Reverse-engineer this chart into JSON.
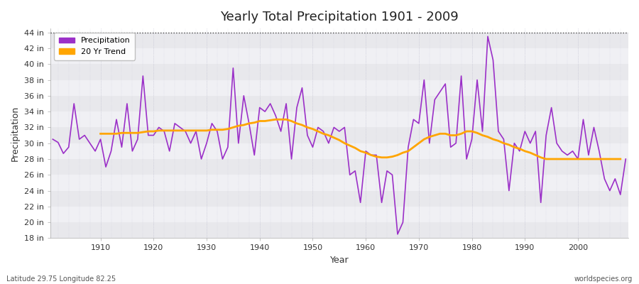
{
  "title": "Yearly Total Precipitation 1901 - 2009",
  "xlabel": "Year",
  "ylabel": "Precipitation",
  "fig_bg_color": "#ffffff",
  "plot_bg_color": "#ffffff",
  "precip_color": "#9B30C8",
  "trend_color": "#FFA500",
  "ylim": [
    18,
    44.5
  ],
  "yticks": [
    18,
    20,
    22,
    24,
    26,
    28,
    30,
    32,
    34,
    36,
    38,
    40,
    42,
    44
  ],
  "dotted_line_y": 44,
  "band_colors": [
    "#e8e8ec",
    "#f0f0f4"
  ],
  "years": [
    1901,
    1902,
    1903,
    1904,
    1905,
    1906,
    1907,
    1908,
    1909,
    1910,
    1911,
    1912,
    1913,
    1914,
    1915,
    1916,
    1917,
    1918,
    1919,
    1920,
    1921,
    1922,
    1923,
    1924,
    1925,
    1926,
    1927,
    1928,
    1929,
    1930,
    1931,
    1932,
    1933,
    1934,
    1935,
    1936,
    1937,
    1938,
    1939,
    1940,
    1941,
    1942,
    1943,
    1944,
    1945,
    1946,
    1947,
    1948,
    1949,
    1950,
    1951,
    1952,
    1953,
    1954,
    1955,
    1956,
    1957,
    1958,
    1959,
    1960,
    1961,
    1962,
    1963,
    1964,
    1965,
    1966,
    1967,
    1968,
    1969,
    1970,
    1971,
    1972,
    1973,
    1974,
    1975,
    1976,
    1977,
    1978,
    1979,
    1980,
    1981,
    1982,
    1983,
    1984,
    1985,
    1986,
    1987,
    1988,
    1989,
    1990,
    1991,
    1992,
    1993,
    1994,
    1995,
    1996,
    1997,
    1998,
    1999,
    2000,
    2001,
    2002,
    2003,
    2004,
    2005,
    2006,
    2007,
    2008,
    2009
  ],
  "precip": [
    30.5,
    30.1,
    28.7,
    29.5,
    35.0,
    30.5,
    31.0,
    30.0,
    29.0,
    30.5,
    27.0,
    29.0,
    33.0,
    29.5,
    35.0,
    29.0,
    30.5,
    38.5,
    31.0,
    31.0,
    32.0,
    31.5,
    29.0,
    32.5,
    32.0,
    31.5,
    30.0,
    31.5,
    28.0,
    30.0,
    32.5,
    31.5,
    28.0,
    29.5,
    39.5,
    30.0,
    36.0,
    32.5,
    28.5,
    34.5,
    34.0,
    35.0,
    33.5,
    31.5,
    35.0,
    28.0,
    34.5,
    37.0,
    31.0,
    29.5,
    32.0,
    31.5,
    30.0,
    32.0,
    31.5,
    32.0,
    26.0,
    26.5,
    22.5,
    29.0,
    28.5,
    28.5,
    22.5,
    26.5,
    26.0,
    18.5,
    20.0,
    29.5,
    33.0,
    32.5,
    38.0,
    30.0,
    35.5,
    36.5,
    37.5,
    29.5,
    30.0,
    38.5,
    28.0,
    30.5,
    38.0,
    31.5,
    43.5,
    40.5,
    31.5,
    30.5,
    24.0,
    30.0,
    29.0,
    31.5,
    30.0,
    31.5,
    22.5,
    31.0,
    34.5,
    30.0,
    29.0,
    28.5,
    29.0,
    28.0,
    33.0,
    28.5,
    32.0,
    29.0,
    25.5,
    24.0,
    25.5,
    23.5,
    28.0
  ],
  "trend": [
    null,
    null,
    null,
    null,
    null,
    null,
    null,
    null,
    null,
    31.2,
    31.2,
    31.2,
    31.2,
    31.3,
    31.3,
    31.3,
    31.3,
    31.4,
    31.5,
    31.5,
    31.6,
    31.6,
    31.6,
    31.6,
    31.6,
    31.6,
    31.6,
    31.6,
    31.6,
    31.6,
    31.7,
    31.7,
    31.7,
    31.8,
    32.0,
    32.2,
    32.3,
    32.5,
    32.6,
    32.8,
    32.8,
    32.9,
    33.0,
    33.0,
    33.0,
    32.8,
    32.5,
    32.3,
    32.0,
    31.8,
    31.5,
    31.2,
    31.0,
    30.7,
    30.4,
    30.0,
    29.7,
    29.4,
    29.0,
    28.8,
    28.5,
    28.3,
    28.2,
    28.2,
    28.3,
    28.5,
    28.8,
    29.0,
    29.5,
    30.0,
    30.5,
    30.8,
    31.0,
    31.2,
    31.2,
    31.0,
    31.0,
    31.2,
    31.5,
    31.5,
    31.3,
    31.0,
    30.8,
    30.5,
    30.3,
    30.0,
    29.8,
    29.5,
    29.3,
    29.0,
    28.8,
    28.5,
    28.2,
    28.0,
    28.0,
    28.0,
    28.0,
    28.0,
    28.0,
    28.0,
    28.0,
    28.0,
    28.0,
    28.0,
    28.0,
    28.0,
    28.0,
    28.0
  ],
  "legend_precip": "Precipitation",
  "legend_trend": "20 Yr Trend",
  "footnote_left": "Latitude 29.75 Longitude 82.25",
  "footnote_right": "worldspecies.org"
}
